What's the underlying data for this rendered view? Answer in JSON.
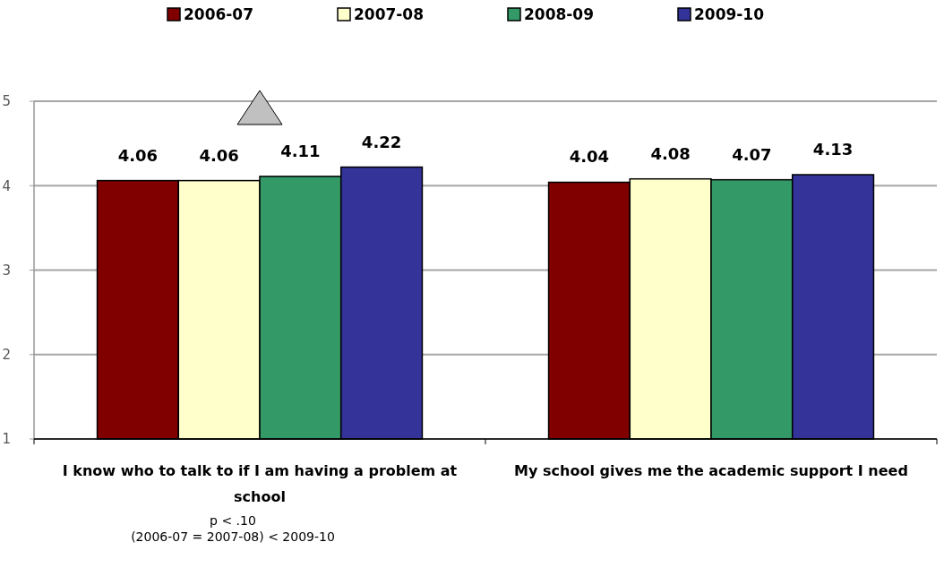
{
  "chart_data": {
    "type": "bar",
    "categories": [
      "I know who to talk to if I am having a problem at school",
      "My school gives me the academic support I need"
    ],
    "series": [
      {
        "name": "2006-07",
        "color": "#800000",
        "values": [
          4.06,
          4.04
        ]
      },
      {
        "name": "2007-08",
        "color": "#ffffcc",
        "values": [
          4.06,
          4.08
        ]
      },
      {
        "name": "2008-09",
        "color": "#339966",
        "values": [
          4.11,
          4.07
        ]
      },
      {
        "name": "2009-10",
        "color": "#333399",
        "values": [
          4.22,
          4.13
        ]
      }
    ],
    "ylim": [
      1,
      5
    ],
    "yticks": [
      1,
      2,
      3,
      4,
      5
    ],
    "grid": "y",
    "legend": "top",
    "data_labels": true,
    "annotations": [
      "p < .10",
      "(2006-07 = 2007-08) < 2009-10"
    ]
  }
}
